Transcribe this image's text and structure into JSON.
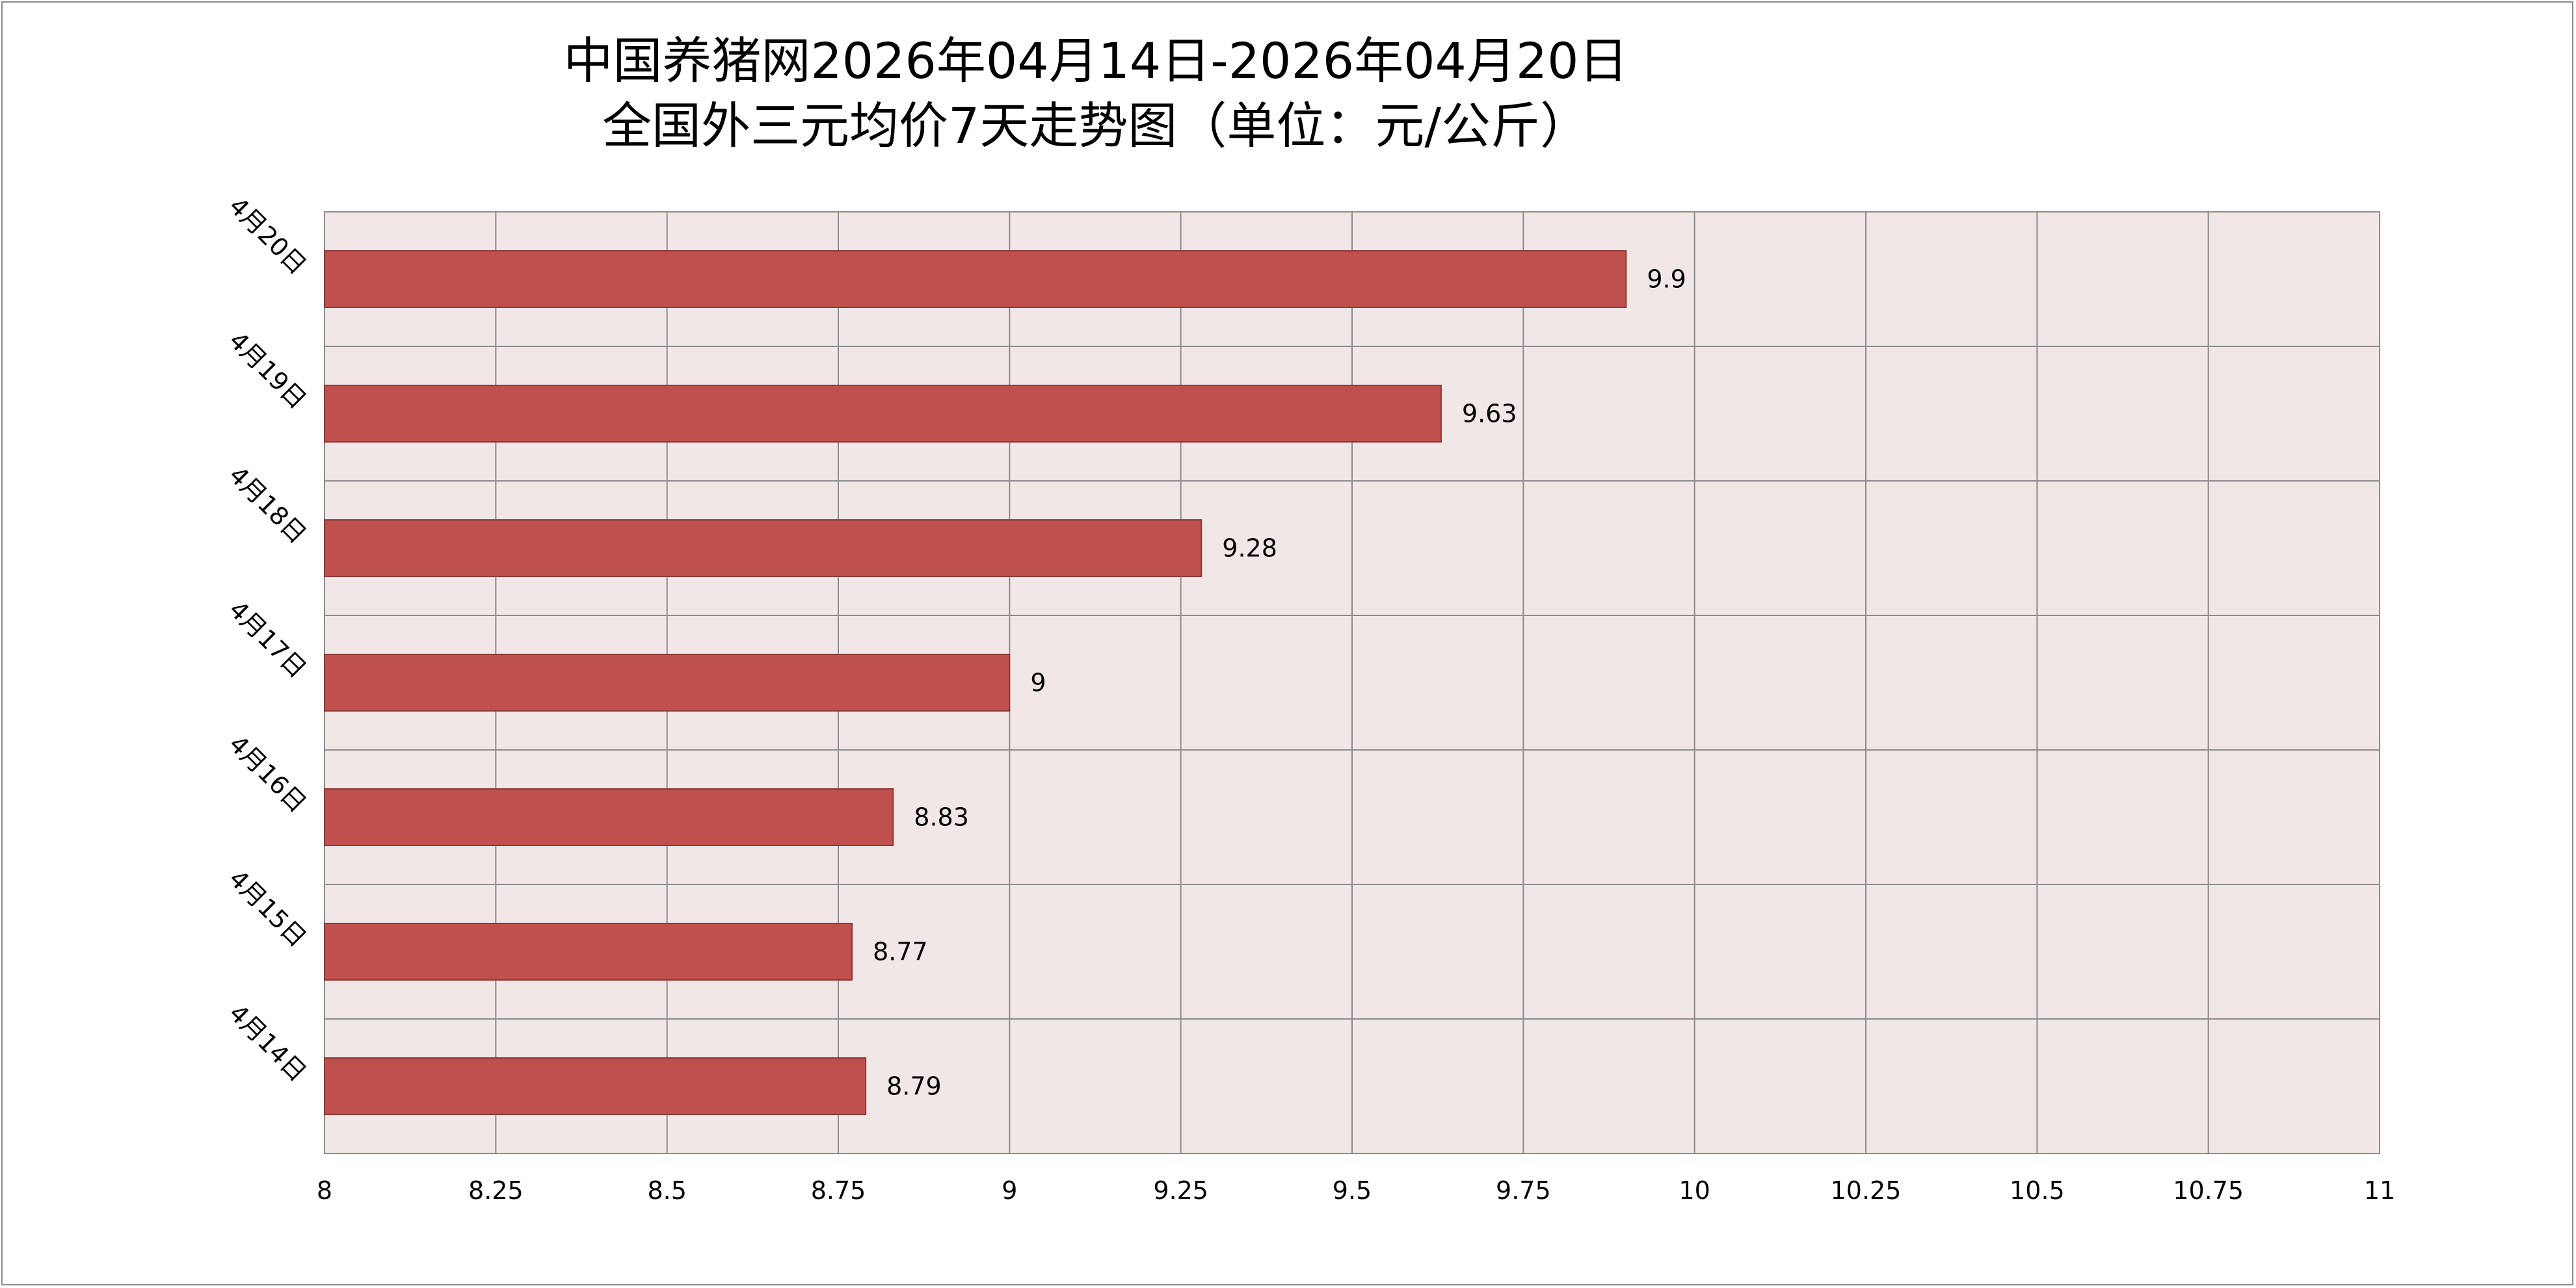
{
  "chart_data": {
    "type": "bar",
    "orientation": "horizontal",
    "title_lines": [
      "中国养猪网2026年04月14日-2026年04月20日",
      "全国外三元均价7天走势图（单位：元/公斤）"
    ],
    "categories": [
      "4月20日",
      "4月19日",
      "4月18日",
      "4月17日",
      "4月16日",
      "4月15日",
      "4月14日"
    ],
    "values": [
      9.9,
      9.63,
      9.28,
      9,
      8.83,
      8.77,
      8.79
    ],
    "value_labels": [
      "9.9",
      "9.63",
      "9.28",
      "9",
      "8.83",
      "8.77",
      "8.79"
    ],
    "xlim": [
      8,
      11
    ],
    "x_ticks": [
      8,
      8.25,
      8.5,
      8.75,
      9,
      9.25,
      9.5,
      9.75,
      10,
      10.25,
      10.5,
      10.75,
      11
    ],
    "x_tick_labels": [
      "8",
      "8.25",
      "8.5",
      "8.75",
      "9",
      "9.25",
      "9.5",
      "9.75",
      "10",
      "10.25",
      "10.5",
      "10.75",
      "11"
    ],
    "xlabel": "",
    "ylabel": "",
    "grid": true,
    "legend": "none",
    "colors": {
      "bar_fill": "#c0504d",
      "bar_stroke": "#8c3836",
      "plot_bg": "#f2e7e7",
      "grid": "#8c8c8c"
    }
  }
}
